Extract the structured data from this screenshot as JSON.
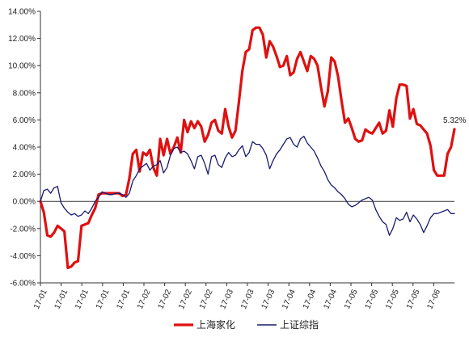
{
  "chart_data": {
    "type": "line",
    "ylim": [
      -6,
      14
    ],
    "y_ticks": [
      "14.00%",
      "12.00%",
      "10.00%",
      "8.00%",
      "6.00%",
      "4.00%",
      "2.00%",
      "0.00%",
      "-2.00%",
      "-4.00%",
      "-6.00%"
    ],
    "x_ticks": [
      "17-01",
      "17-01",
      "17-01",
      "17-01",
      "17-01",
      "17-02",
      "17-02",
      "17-02",
      "17-02",
      "17-03",
      "17-03",
      "17-03",
      "17-04",
      "17-04",
      "17-04",
      "17-05",
      "17-05",
      "17-05",
      "17-05",
      "17-06"
    ],
    "grid": false,
    "legend_position": "bottom",
    "annotation": "5.32%",
    "colors": {
      "series_1": "#e01010",
      "series_2": "#1a1a6e",
      "axis": "#333333"
    },
    "series": [
      {
        "name": "上海家化",
        "values": [
          0.0,
          -0.8,
          -2.5,
          -2.6,
          -2.3,
          -1.8,
          -2.0,
          -2.2,
          -4.9,
          -4.8,
          -4.5,
          -4.4,
          -1.8,
          -1.7,
          -1.6,
          -1.0,
          -0.5,
          0.5,
          0.6,
          0.6,
          0.6,
          0.6,
          0.6,
          0.6,
          0.4,
          0.5,
          1.7,
          3.5,
          3.8,
          2.2,
          3.6,
          3.4,
          3.8,
          2.5,
          1.9,
          4.6,
          3.4,
          4.6,
          3.5,
          4.0,
          4.7,
          3.6,
          6.0,
          5.1,
          5.9,
          5.4,
          5.9,
          5.5,
          4.4,
          4.9,
          5.8,
          6.0,
          5.2,
          5.0,
          6.8,
          5.5,
          4.7,
          5.2,
          7.3,
          9.6,
          11.0,
          11.2,
          12.6,
          12.8,
          12.8,
          12.3,
          10.6,
          11.8,
          11.4,
          10.7,
          9.9,
          10.0,
          10.7,
          9.3,
          9.5,
          10.5,
          11.0,
          10.3,
          9.6,
          10.7,
          10.5,
          10.0,
          8.4,
          7.0,
          8.1,
          10.6,
          10.3,
          9.2,
          7.4,
          5.8,
          6.1,
          5.4,
          4.6,
          4.4,
          4.5,
          5.3,
          5.1,
          5.0,
          5.4,
          5.8,
          5.0,
          5.2,
          6.7,
          5.5,
          7.6,
          8.6,
          8.6,
          8.5,
          6.1,
          6.8,
          5.7,
          5.6,
          5.3,
          5.0,
          4.1,
          2.3,
          1.9,
          1.9,
          1.9,
          3.5,
          4.0,
          5.32
        ]
      },
      {
        "name": "上证综指",
        "values": [
          0.0,
          0.8,
          0.9,
          0.6,
          1.0,
          1.1,
          -0.1,
          -0.5,
          -0.8,
          -1.0,
          -0.9,
          -1.1,
          -1.0,
          -0.7,
          -0.9,
          -0.5,
          0.0,
          0.3,
          0.7,
          0.6,
          0.5,
          0.5,
          0.6,
          0.6,
          0.5,
          0.3,
          0.6,
          1.5,
          1.9,
          2.4,
          2.6,
          2.8,
          2.3,
          2.6,
          2.7,
          3.0,
          2.1,
          2.5,
          3.4,
          3.9,
          4.0,
          3.6,
          3.7,
          3.5,
          3.0,
          2.4,
          3.3,
          3.4,
          2.8,
          2.0,
          3.3,
          3.4,
          2.7,
          2.5,
          3.2,
          3.6,
          3.3,
          3.4,
          3.8,
          4.1,
          3.3,
          3.6,
          4.4,
          4.2,
          4.2,
          3.9,
          3.4,
          2.4,
          3.0,
          3.5,
          3.8,
          4.2,
          4.6,
          4.7,
          4.2,
          4.0,
          4.6,
          4.8,
          4.3,
          4.0,
          3.7,
          3.2,
          2.6,
          2.2,
          1.6,
          1.2,
          1.0,
          0.7,
          0.5,
          0.2,
          -0.2,
          -0.4,
          -0.3,
          -0.1,
          0.1,
          0.2,
          0.3,
          0.1,
          -0.6,
          -1.1,
          -1.5,
          -1.7,
          -2.5,
          -2.0,
          -1.2,
          -1.4,
          -1.3,
          -0.8,
          -1.5,
          -1.0,
          -1.3,
          -1.7,
          -2.3,
          -1.8,
          -1.2,
          -0.9,
          -0.9,
          -0.8,
          -0.7,
          -0.6,
          -0.9,
          -0.9
        ]
      }
    ]
  }
}
